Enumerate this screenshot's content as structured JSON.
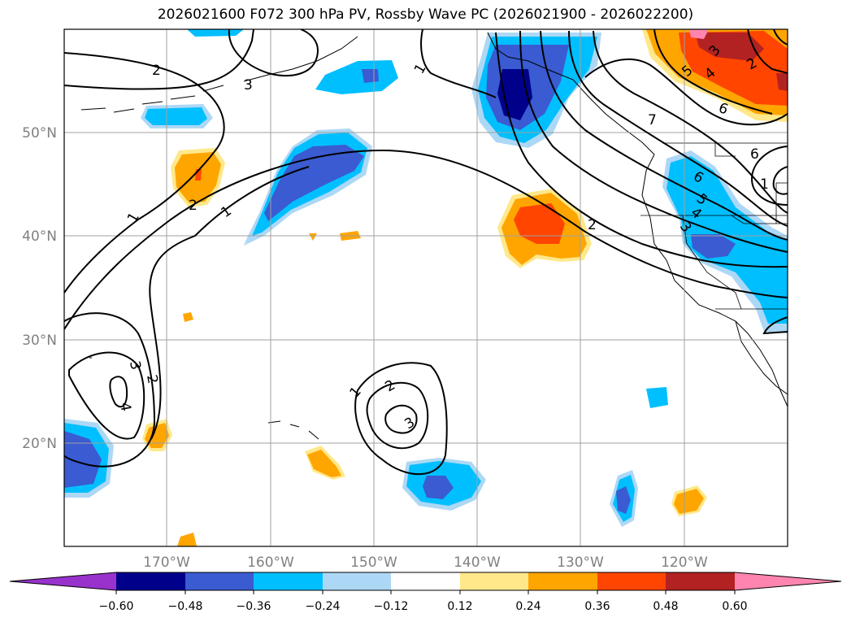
{
  "title": "2026021600 F072 300 hPa PV, Rossby Wave PC (2026021900 - 2026022200)",
  "map": {
    "lat_labels": [
      "50°N",
      "40°N",
      "30°N",
      "20°N"
    ],
    "lon_labels": [
      "170°W",
      "160°W",
      "150°W",
      "140°W",
      "130°W",
      "120°W"
    ],
    "contour_labels": [
      "1",
      "1",
      "1",
      "2",
      "2",
      "2",
      "3",
      "3",
      "4",
      "2",
      "2",
      "1",
      "3",
      "7",
      "6",
      "6",
      "5",
      "4",
      "3",
      "6",
      "5",
      "4",
      "3",
      "2",
      "1"
    ]
  },
  "colorbar": {
    "tick_labels": [
      "−0.60",
      "−0.48",
      "−0.36",
      "−0.24",
      "−0.12",
      "0.12",
      "0.24",
      "0.36",
      "0.48",
      "0.60"
    ],
    "colors": [
      "#9932cc",
      "#00008b",
      "#3a5bd1",
      "#00bfff",
      "#add8f5",
      "#ffffff",
      "#ffe88a",
      "#ffa500",
      "#ff4500",
      "#b22222",
      "#ff85b0"
    ]
  }
}
